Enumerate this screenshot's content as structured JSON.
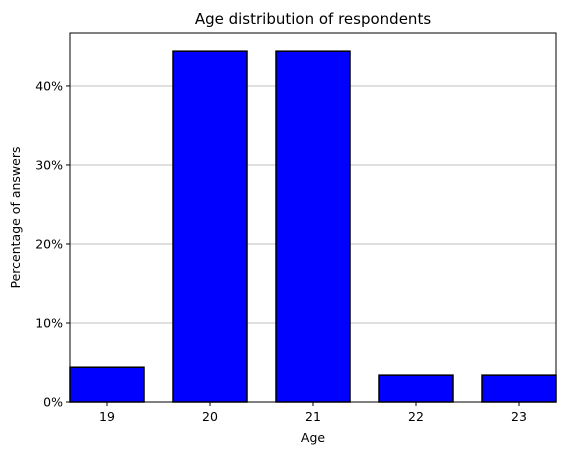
{
  "chart_data": {
    "type": "bar",
    "title": "Age distribution of respondents",
    "xlabel": "Age",
    "ylabel": "Percentage of answers",
    "categories": [
      "19",
      "20",
      "21",
      "22",
      "23"
    ],
    "values": [
      4.4,
      44.4,
      44.4,
      3.4,
      3.4
    ],
    "ylim": [
      0,
      46.7
    ],
    "yticks": [
      0,
      10,
      20,
      30,
      40
    ],
    "ytick_labels": [
      "0%",
      "10%",
      "20%",
      "30%",
      "40%"
    ],
    "grid": "y",
    "bar_color": "#0000ff",
    "bar_edge_color": "#000000",
    "grid_color": "#c0c0c0"
  }
}
